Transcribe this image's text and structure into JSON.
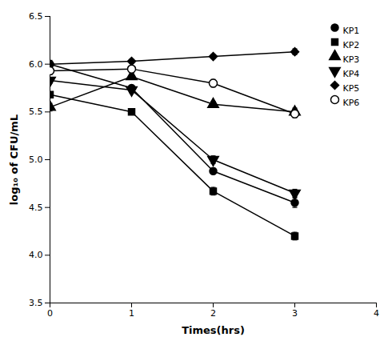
{
  "chart_data": {
    "type": "line",
    "xlabel": "Times(hrs)",
    "ylabel": "log₁₀ of CFU/mL",
    "xlim": [
      0,
      4
    ],
    "ylim": [
      3.5,
      6.5
    ],
    "xticks": [
      0,
      1,
      2,
      3,
      4
    ],
    "yticks": [
      3.5,
      {
        "value": 4,
        "label": "4.0"
      },
      4.5,
      {
        "value": 5,
        "label": "5.0"
      },
      5.5,
      {
        "value": 6,
        "label": "6.0"
      },
      6.5
    ],
    "grid": false,
    "legend": "upper right",
    "x": [
      0,
      1,
      2,
      3
    ],
    "series": [
      {
        "name": "KP1",
        "color": "#000000",
        "marker": "circle",
        "values": [
          6.0,
          5.75,
          4.88,
          4.55
        ],
        "yerr": [
          0.04,
          0.03,
          0.03,
          0.05
        ]
      },
      {
        "name": "KP2",
        "color": "#000000",
        "marker": "square",
        "values": [
          5.68,
          5.5,
          4.67,
          4.2
        ],
        "yerr": [
          0.03,
          0.03,
          0.04,
          0.04
        ]
      },
      {
        "name": "KP3",
        "color": "#000000",
        "marker": "triangle_up",
        "values": [
          5.55,
          5.87,
          5.58,
          5.5
        ],
        "yerr": [
          0.04,
          0.03,
          0.03,
          0.04
        ]
      },
      {
        "name": "KP4",
        "color": "#000000",
        "marker": "triangle_down",
        "values": [
          5.83,
          5.73,
          5.0,
          4.65
        ],
        "yerr": [
          0.03,
          0.03,
          0.04,
          0.04
        ]
      },
      {
        "name": "KP5",
        "color": "#000000",
        "marker": "diamond",
        "values": [
          6.0,
          6.03,
          6.08,
          6.13
        ],
        "yerr": [
          0.03,
          0.02,
          0.02,
          0.03
        ]
      },
      {
        "name": "KP6",
        "color": "#000000",
        "marker": "hollow_circle",
        "values": [
          5.93,
          5.95,
          5.8,
          5.48
        ],
        "yerr": [
          0.04,
          0.03,
          0.04,
          0.04
        ]
      }
    ]
  }
}
